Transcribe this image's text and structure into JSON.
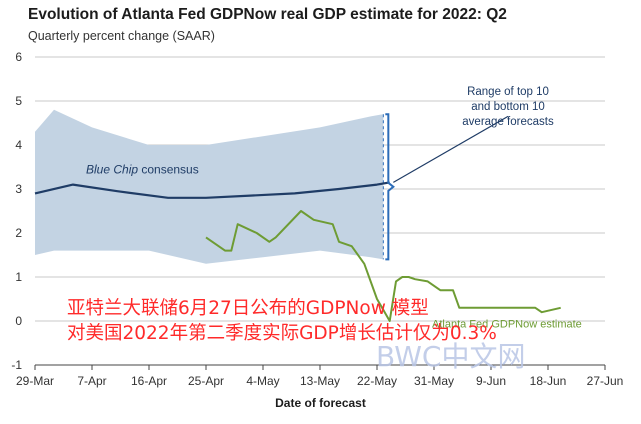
{
  "header": {
    "title": "Evolution of Atlanta Fed GDPNow real GDP estimate for 2022: Q2",
    "subtitle": "Quarterly percent change (SAAR)"
  },
  "chart_data": {
    "type": "line",
    "title": "Evolution of Atlanta Fed GDPNow real GDP estimate for 2022: Q2",
    "subtitle": "Quarterly percent change (SAAR)",
    "xlabel": "Date of forecast",
    "ylabel": "",
    "ylim": [
      -1,
      6
    ],
    "yticks": [
      -1,
      0,
      1,
      2,
      3,
      4,
      5,
      6
    ],
    "xticks": [
      "29-Mar",
      "7-Apr",
      "16-Apr",
      "25-Apr",
      "4-May",
      "13-May",
      "22-May",
      "31-May",
      "9-Jun",
      "18-Jun",
      "27-Jun"
    ],
    "grid": "horizontal",
    "band": {
      "name": "Range of top 10 and bottom 10 average forecasts",
      "x": [
        0,
        3,
        9,
        18,
        27,
        36,
        45,
        53,
        55
      ],
      "upper": [
        4.3,
        4.8,
        4.4,
        4.0,
        4.0,
        4.2,
        4.4,
        4.65,
        4.7
      ],
      "lower": [
        1.5,
        1.6,
        1.6,
        1.6,
        1.3,
        1.45,
        1.6,
        1.45,
        1.4
      ]
    },
    "series": [
      {
        "name": "Blue Chip consensus",
        "color": "#1f3c66",
        "x": [
          0,
          6,
          13,
          21,
          27,
          34,
          41,
          48,
          54,
          56
        ],
        "y": [
          2.9,
          3.1,
          2.95,
          2.8,
          2.8,
          2.85,
          2.9,
          3.0,
          3.1,
          3.15
        ]
      },
      {
        "name": "GDPNow estimate",
        "color": "#6e9c34",
        "x": [
          27,
          30,
          31,
          32,
          35,
          37,
          38,
          42,
          44,
          47,
          48,
          50,
          52,
          54,
          56,
          57,
          58,
          59,
          60,
          62,
          64,
          66,
          67,
          69,
          70,
          73,
          76,
          79,
          80,
          83
        ],
        "y": [
          1.9,
          1.6,
          1.6,
          2.2,
          2.0,
          1.8,
          1.9,
          2.5,
          2.3,
          2.2,
          1.8,
          1.7,
          1.3,
          0.5,
          0.0,
          0.9,
          1.0,
          1.0,
          0.95,
          0.9,
          0.7,
          0.7,
          0.3,
          0.3,
          0.3,
          0.3,
          0.3,
          0.3,
          0.2,
          0.3
        ]
      }
    ],
    "annotations": {
      "blue_chip_label": "Blue Chip consensus",
      "gdpnow_label": "Atlanta Fed GDPNow estimate",
      "range_label": [
        "Range of top 10",
        "and bottom 10",
        "average forecasts"
      ]
    },
    "colors": {
      "band": "#c3d3e3",
      "bracket": "#2b6cb8",
      "grid": "#c9c9c9",
      "axis": "#444444"
    }
  },
  "overlay": {
    "line1": "亚特兰大联储6月27日公布的GDPNow 模型",
    "line2": "对美国2022年第二季度实际GDP增长估计仅为0.3%",
    "watermark": "BWC中文网",
    "color": "#ff2a2a"
  }
}
